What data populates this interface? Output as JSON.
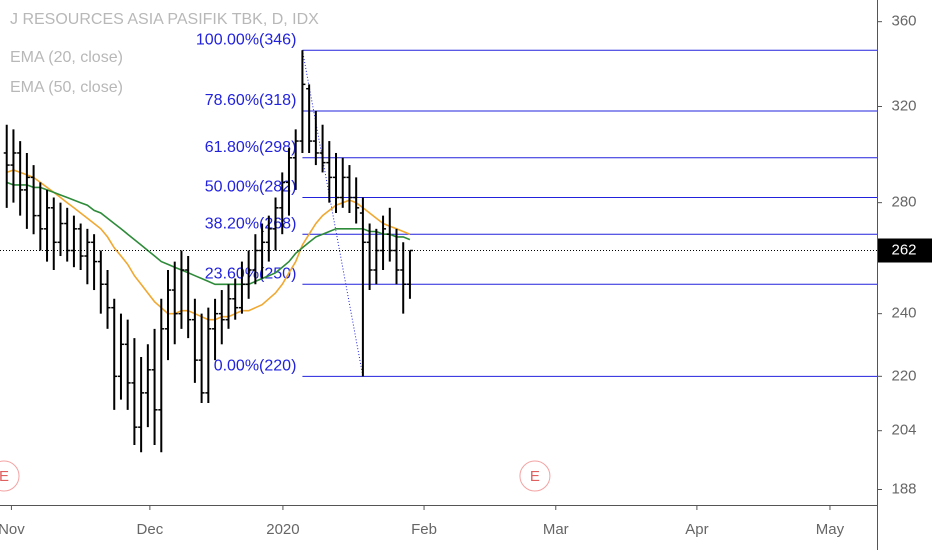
{
  "chart_data": {
    "type": "ohlc",
    "title": "J RESOURCES ASIA PASIFIK TBK, D, IDX",
    "color": "#000000",
    "open": [
      300,
      295,
      300,
      285,
      290,
      275,
      270,
      278,
      265,
      272,
      262,
      270,
      260,
      265,
      258,
      250,
      242,
      220,
      230,
      218,
      205,
      215,
      222,
      210,
      235,
      248,
      240,
      255,
      238,
      225,
      215,
      235,
      240,
      238,
      245,
      242,
      250,
      255,
      262,
      265,
      270,
      278,
      288,
      298,
      305,
      328,
      305,
      300,
      296,
      290,
      282,
      290,
      282,
      276,
      265,
      255,
      262,
      268,
      262,
      255,
      250
    ],
    "high": [
      312,
      310,
      305,
      300,
      295,
      288,
      285,
      282,
      280,
      278,
      275,
      272,
      270,
      268,
      262,
      255,
      245,
      240,
      238,
      232,
      226,
      230,
      235,
      245,
      255,
      258,
      262,
      260,
      245,
      240,
      242,
      245,
      248,
      250,
      252,
      258,
      262,
      268,
      272,
      275,
      282,
      292,
      302,
      310,
      346,
      330,
      318,
      312,
      305,
      300,
      298,
      295,
      290,
      282,
      272,
      270,
      275,
      278,
      270,
      265,
      262
    ],
    "low": [
      278,
      280,
      275,
      270,
      268,
      262,
      258,
      255,
      260,
      258,
      256,
      255,
      250,
      248,
      240,
      235,
      210,
      213,
      210,
      200,
      198,
      205,
      200,
      198,
      225,
      230,
      235,
      232,
      218,
      212,
      212,
      225,
      230,
      235,
      238,
      240,
      245,
      250,
      252,
      258,
      262,
      268,
      275,
      285,
      300,
      300,
      295,
      292,
      280,
      276,
      278,
      276,
      272,
      220,
      248,
      250,
      255,
      258,
      250,
      240,
      245
    ],
    "close": [
      295,
      300,
      285,
      290,
      275,
      270,
      278,
      265,
      272,
      262,
      270,
      260,
      265,
      258,
      250,
      242,
      220,
      230,
      218,
      205,
      215,
      222,
      210,
      235,
      248,
      240,
      255,
      238,
      225,
      215,
      235,
      240,
      238,
      245,
      242,
      250,
      255,
      262,
      265,
      270,
      278,
      288,
      298,
      305,
      330,
      305,
      300,
      296,
      290,
      282,
      290,
      282,
      278,
      265,
      255,
      262,
      270,
      262,
      255,
      250,
      262
    ],
    "series": [
      {
        "name": "EMA (20, close)",
        "color": "#f0a830",
        "values": [
          292,
          293,
          292,
          291,
          290,
          288,
          286,
          284,
          282,
          280,
          278,
          276,
          274,
          272,
          270,
          267,
          263,
          260,
          257,
          253,
          250,
          247,
          244,
          242,
          240,
          240,
          241,
          241,
          240,
          239,
          238,
          238,
          239,
          239,
          240,
          241,
          241,
          242,
          243,
          245,
          247,
          250,
          254,
          258,
          264,
          268,
          272,
          275,
          277,
          279,
          280,
          281,
          280,
          278,
          276,
          274,
          272,
          271,
          270,
          269,
          268
        ]
      },
      {
        "name": "EMA (50, close)",
        "color": "#2e8b3a",
        "values": [
          288,
          287,
          287,
          287,
          286,
          286,
          285,
          284,
          283,
          282,
          281,
          280,
          279,
          277,
          276,
          274,
          272,
          270,
          268,
          266,
          264,
          262,
          260,
          258,
          257,
          256,
          255,
          254,
          253,
          252,
          251,
          250,
          250,
          250,
          250,
          250,
          250,
          251,
          252,
          253,
          254,
          256,
          258,
          261,
          263,
          265,
          267,
          268,
          269,
          270,
          270,
          270,
          270,
          270,
          269,
          269,
          268,
          268,
          267,
          267,
          266
        ]
      }
    ],
    "fib_color": "#2222dd",
    "fib_levels": [
      {
        "value": 346,
        "label": "100.00%(346)"
      },
      {
        "value": 318,
        "label": "78.60%(318)"
      },
      {
        "value": 298,
        "label": "61.80%(298)"
      },
      {
        "value": 282,
        "label": "50.00%(282)"
      },
      {
        "value": 268,
        "label": "38.20%(268)"
      },
      {
        "value": 250,
        "label": "23.60%(250)"
      },
      {
        "value": 220,
        "label": "0.00%(220)"
      }
    ],
    "last": 262,
    "log_scale": true,
    "ylim": [
      184,
      371
    ],
    "yticks": [
      188,
      204,
      220,
      240,
      280,
      320,
      360
    ],
    "xlim": [
      -1,
      129.5
    ],
    "xticks": [
      {
        "value": 0.7,
        "label": "Nov"
      },
      {
        "value": 21.3,
        "label": "Dec"
      },
      {
        "value": 41.1,
        "label": "2020"
      },
      {
        "value": 62.1,
        "label": "Feb"
      },
      {
        "value": 81.7,
        "label": "Mar"
      },
      {
        "value": 102.7,
        "label": "Apr"
      },
      {
        "value": 122.5,
        "label": "May"
      }
    ],
    "events": [
      {
        "label": "E",
        "x": -0.4
      },
      {
        "label": "E",
        "x": 78.6
      }
    ]
  }
}
